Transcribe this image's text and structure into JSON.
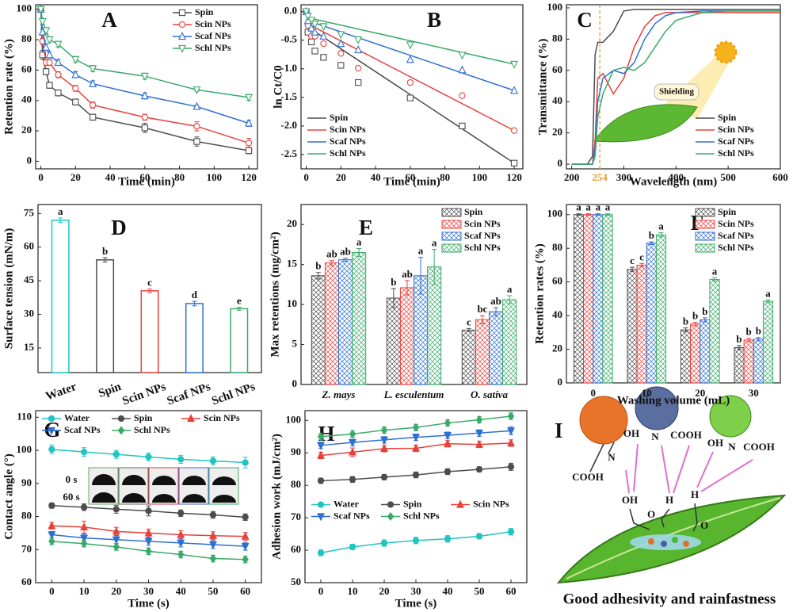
{
  "chart_data": [
    {
      "type": "line",
      "panel": "A",
      "xlabel": "Time (min)",
      "ylabel": "Retention rate (%)",
      "legend": "upper right",
      "x": [
        0,
        1,
        3,
        5,
        10,
        20,
        30,
        60,
        90,
        120
      ],
      "xlim": [
        -3,
        125
      ],
      "xticks": [
        0,
        20,
        40,
        60,
        80,
        100,
        120
      ],
      "ylim": [
        -5,
        103
      ],
      "yticks": [
        0,
        20,
        40,
        60,
        80,
        100
      ],
      "series": [
        {
          "name": "Spin",
          "color": "#4d4d4d",
          "marker": "square",
          "values": [
            100,
            70,
            59,
            50,
            45,
            39,
            29,
            22,
            13,
            7
          ],
          "errors": [
            1,
            3,
            2,
            2,
            2,
            2,
            2,
            3,
            3,
            2
          ]
        },
        {
          "name": "Scin NPs",
          "color": "#e8413c",
          "marker": "circle",
          "values": [
            100,
            79,
            65,
            65,
            57,
            48,
            37,
            29,
            23,
            12
          ],
          "errors": [
            1,
            2,
            2,
            2,
            2,
            2,
            2,
            2,
            3,
            3
          ]
        },
        {
          "name": "Scaf NPs",
          "color": "#2f6fd0",
          "marker": "triangle-up",
          "values": [
            100,
            85,
            75,
            70,
            65,
            57,
            51,
            43,
            36,
            25
          ],
          "errors": [
            1,
            2,
            2,
            2,
            2,
            2,
            2,
            2,
            1,
            2
          ]
        },
        {
          "name": "Schl NPs",
          "color": "#3aaa6a",
          "marker": "triangle-down",
          "values": [
            100,
            92,
            86,
            80,
            77,
            67,
            61,
            56,
            47,
            42
          ],
          "errors": [
            1,
            2,
            2,
            2,
            2,
            2,
            2,
            2,
            1,
            2
          ]
        }
      ]
    },
    {
      "type": "scatter",
      "panel": "B",
      "xlabel": "Time (min)",
      "ylabel": "ln Ct/C0",
      "legend": "lower left",
      "x": [
        0,
        1,
        3,
        5,
        10,
        20,
        30,
        60,
        90,
        120
      ],
      "xlim": [
        -3,
        125
      ],
      "xticks": [
        0,
        20,
        40,
        60,
        80,
        100,
        120
      ],
      "ylim": [
        -2.75,
        0.12
      ],
      "yticks": [
        {
          "value": 0,
          "label": "0.0"
        },
        -0.5,
        {
          "value": -1,
          "label": "-1.0"
        },
        -1.5,
        {
          "value": -2,
          "label": "-2.0"
        },
        -2.5
      ],
      "fit_x": [
        0,
        120
      ],
      "series": [
        {
          "name": "Spin",
          "color": "#4d4d4d",
          "marker": "square",
          "values": [
            0,
            -0.36,
            -0.53,
            -0.69,
            -0.8,
            -0.94,
            -1.24,
            -1.51,
            -2.0,
            -2.65
          ],
          "fit": [
            -0.25,
            -2.65
          ]
        },
        {
          "name": "Scin NPs",
          "color": "#e8413c",
          "marker": "circle",
          "values": [
            0,
            -0.24,
            -0.43,
            -0.43,
            -0.56,
            -0.73,
            -0.99,
            -1.24,
            -1.47,
            -2.08
          ],
          "fit": [
            -0.2,
            -2.08
          ]
        },
        {
          "name": "Scaf NPs",
          "color": "#2f6fd0",
          "marker": "triangle-up",
          "values": [
            0,
            -0.16,
            -0.29,
            -0.36,
            -0.43,
            -0.56,
            -0.67,
            -0.84,
            -1.02,
            -1.38
          ],
          "fit": [
            -0.15,
            -1.38
          ]
        },
        {
          "name": "Schl NPs",
          "color": "#3aaa6a",
          "marker": "triangle-down",
          "values": [
            0,
            -0.08,
            -0.15,
            -0.22,
            -0.26,
            -0.4,
            -0.49,
            -0.58,
            -0.76,
            -0.92
          ],
          "fit": [
            -0.1,
            -0.92
          ]
        }
      ]
    },
    {
      "type": "line",
      "panel": "C",
      "xlabel": "Wavelength (nm)",
      "ylabel": "Transmittance (%)",
      "legend": "lower right",
      "annotation": "Shielding",
      "vline": {
        "value": 254,
        "label": "254",
        "color": "#e0a030"
      },
      "x": [
        200,
        230,
        240,
        245,
        250,
        260,
        280,
        300,
        320,
        340,
        360,
        380,
        400,
        450,
        500,
        600
      ],
      "xlim": [
        190,
        600
      ],
      "xticks": [
        200,
        300,
        400,
        500,
        600
      ],
      "ylim": [
        -3,
        102
      ],
      "yticks": [
        0,
        20,
        40,
        60,
        80,
        100
      ],
      "series": [
        {
          "name": "Spin",
          "color": "#4d4d4d",
          "values": [
            0,
            0,
            5,
            70,
            78,
            78,
            85,
            98,
            99,
            99,
            99,
            99,
            99,
            99,
            99,
            99
          ]
        },
        {
          "name": "Scin NPs",
          "color": "#e8413c",
          "values": [
            0,
            0,
            0,
            15,
            55,
            58,
            45,
            55,
            75,
            88,
            95,
            97,
            97,
            97,
            97,
            97
          ]
        },
        {
          "name": "Scaf NPs",
          "color": "#2f6fd0",
          "values": [
            0,
            0,
            0,
            10,
            40,
            55,
            60,
            58,
            65,
            80,
            90,
            95,
            97,
            98,
            98,
            98
          ]
        },
        {
          "name": "Schl NPs",
          "color": "#3aaa6a",
          "values": [
            0,
            0,
            0,
            5,
            30,
            45,
            60,
            62,
            60,
            65,
            75,
            85,
            92,
            97,
            98,
            98
          ]
        }
      ]
    },
    {
      "type": "bar",
      "panel": "D",
      "ylabel": "Surface tension (mN/m)",
      "categories": [
        "Water",
        "Spin",
        "Scin NPs",
        "Scaf NPs",
        "Schl NPs"
      ],
      "values": [
        72,
        54.3,
        40.5,
        34.8,
        32.5
      ],
      "errors": [
        1,
        1,
        0.8,
        1,
        0.7
      ],
      "letters": [
        "a",
        "b",
        "c",
        "d",
        "e"
      ],
      "colors": [
        "#22c3c3",
        "#4d4d4d",
        "#e8413c",
        "#2f6fd0",
        "#3aaa6a"
      ],
      "ylim": [
        4,
        79
      ],
      "yticks": [
        15,
        30,
        45,
        60,
        75
      ]
    },
    {
      "type": "grouped_bar",
      "panel": "E",
      "ylabel": "Max retentions (mg/cm²)",
      "legend": "upper right",
      "categories": [
        "Z. mays",
        "L. esculentum",
        "O. sativa"
      ],
      "ylim": [
        0,
        22.5
      ],
      "yticks": [
        0,
        5,
        10,
        15,
        20
      ],
      "series": [
        {
          "name": "Spin",
          "color": "#4d4d4d",
          "values": [
            13.6,
            10.8,
            6.8
          ],
          "errors": [
            0.4,
            1.2,
            0.2
          ],
          "letters": [
            "b",
            "b",
            "c"
          ]
        },
        {
          "name": "Scin NPs",
          "color": "#e8413c",
          "values": [
            15.2,
            12.1,
            8.1
          ],
          "errors": [
            0.3,
            0.9,
            0.5
          ],
          "letters": [
            "ab",
            "ab",
            "bc"
          ]
        },
        {
          "name": "Scaf NPs",
          "color": "#2f6fd0",
          "values": [
            15.6,
            13.6,
            9.1
          ],
          "errors": [
            0.2,
            2.3,
            0.5
          ],
          "letters": [
            "ab",
            "a",
            "ab"
          ]
        },
        {
          "name": "Schl NPs",
          "color": "#3aaa6a",
          "values": [
            16.5,
            14.7,
            10.6
          ],
          "errors": [
            0.5,
            2.2,
            0.5
          ],
          "letters": [
            "a",
            "a",
            "a"
          ]
        }
      ]
    },
    {
      "type": "grouped_bar",
      "panel": "F",
      "xlabel": "Washing volume (mL)",
      "ylabel": "Retention rates (%)",
      "legend": "upper right",
      "categories": [
        "0",
        "10",
        "20",
        "30"
      ],
      "ylim": [
        0,
        106
      ],
      "yticks": [
        0,
        20,
        40,
        60,
        80,
        100
      ],
      "series": [
        {
          "name": "Spin",
          "color": "#4d4d4d",
          "values": [
            100,
            67.5,
            31.5,
            21
          ],
          "errors": [
            0.5,
            1.2,
            1.2,
            1.2
          ],
          "letters": [
            "a",
            "c",
            "b",
            "b"
          ]
        },
        {
          "name": "Scin NPs",
          "color": "#e8413c",
          "values": [
            100,
            70,
            35,
            25.5
          ],
          "errors": [
            0.5,
            1,
            1,
            1
          ],
          "letters": [
            "a",
            "c",
            "b",
            "b"
          ]
        },
        {
          "name": "Scaf NPs",
          "color": "#2f6fd0",
          "values": [
            100,
            83,
            37.5,
            26
          ],
          "errors": [
            0.5,
            0.8,
            1.2,
            1
          ],
          "letters": [
            "a",
            "b",
            "b",
            "b"
          ]
        },
        {
          "name": "Schl NPs",
          "color": "#3aaa6a",
          "values": [
            100,
            88,
            61.5,
            48.5
          ],
          "errors": [
            0.5,
            1.2,
            1,
            0.8
          ],
          "letters": [
            "a",
            "a",
            "a",
            "a"
          ]
        }
      ]
    },
    {
      "type": "line",
      "panel": "G",
      "xlabel": "Time (s)",
      "ylabel": "Contact angle (°)",
      "legend": "upper left",
      "legend_columns": 3,
      "inset_labels": [
        "0 s",
        "60 s"
      ],
      "x": [
        0,
        10,
        20,
        30,
        40,
        50,
        60
      ],
      "xlim": [
        -5,
        65
      ],
      "xticks": [
        0,
        10,
        20,
        30,
        40,
        50,
        60
      ],
      "ylim": [
        60,
        112
      ],
      "yticks": [
        60,
        70,
        80,
        90,
        100,
        110
      ],
      "series": [
        {
          "name": "Water",
          "color": "#22c3c3",
          "marker": "circle-filled",
          "values": [
            100.3,
            99.5,
            98.8,
            98,
            97.3,
            96.8,
            96.3
          ],
          "errors": [
            1.3,
            1.3,
            1.2,
            1.2,
            1.2,
            1.2,
            1.6
          ]
        },
        {
          "name": "Spin",
          "color": "#4d4d4d",
          "marker": "circle-filled",
          "values": [
            83.3,
            82.8,
            82.2,
            81.7,
            81,
            80.5,
            79.8
          ],
          "errors": [
            0.8,
            1,
            1.2,
            1.5,
            1,
            1,
            1
          ]
        },
        {
          "name": "Scin NPs",
          "color": "#e8413c",
          "marker": "triangle-up-filled",
          "values": [
            77.2,
            76.8,
            75.5,
            75,
            74.5,
            74.2,
            74
          ],
          "errors": [
            1,
            1.8,
            1.2,
            1.2,
            1.2,
            1.2,
            1.2
          ]
        },
        {
          "name": "Scaf NPs",
          "color": "#2f6fd0",
          "marker": "triangle-down-filled",
          "values": [
            74.5,
            73.5,
            73,
            72.5,
            72,
            71.5,
            71
          ],
          "errors": [
            1,
            1.2,
            1.2,
            1.2,
            1.2,
            1.2,
            1.2
          ]
        },
        {
          "name": "Schl NPs",
          "color": "#3aaa6a",
          "marker": "diamond-filled",
          "values": [
            72.5,
            71.8,
            70.8,
            69.5,
            68.5,
            67.3,
            67
          ],
          "errors": [
            1,
            1,
            1,
            1,
            1,
            1,
            1
          ]
        }
      ]
    },
    {
      "type": "line",
      "panel": "H",
      "xlabel": "Time (s)",
      "ylabel": "Adhesion work (mJ/cm²)",
      "legend": "center left",
      "legend_columns": 3,
      "x": [
        0,
        10,
        20,
        30,
        40,
        50,
        60
      ],
      "xlim": [
        -5,
        65
      ],
      "xticks": [
        0,
        10,
        20,
        30,
        40,
        50,
        60
      ],
      "ylim": [
        50,
        103
      ],
      "yticks": [
        50,
        60,
        70,
        80,
        90,
        100
      ],
      "series": [
        {
          "name": "Water",
          "color": "#22c3c3",
          "marker": "circle-filled",
          "values": [
            59.2,
            61,
            62.2,
            63,
            63.5,
            64.3,
            65.7
          ],
          "errors": [
            0.9,
            0.8,
            1,
            1,
            1,
            0.8,
            1
          ]
        },
        {
          "name": "Spin",
          "color": "#4d4d4d",
          "marker": "circle-filled",
          "values": [
            81.4,
            81.8,
            82.5,
            83.2,
            84.2,
            84.9,
            85.7
          ],
          "errors": [
            0.8,
            0.9,
            0.8,
            0.9,
            0.9,
            0.8,
            1.1
          ]
        },
        {
          "name": "Scin NPs",
          "color": "#e8413c",
          "marker": "triangle-up-filled",
          "values": [
            89.2,
            90.2,
            91.3,
            91.4,
            92.8,
            92.6,
            93
          ],
          "errors": [
            1,
            1.3,
            1,
            1,
            1,
            1,
            1
          ]
        },
        {
          "name": "Scaf NPs",
          "color": "#2f6fd0",
          "marker": "triangle-down-filled",
          "values": [
            92.3,
            93.2,
            94,
            94.8,
            95.4,
            96.1,
            96.8
          ],
          "errors": [
            1,
            1,
            1,
            1,
            1,
            1,
            1.2
          ]
        },
        {
          "name": "Schl NPs",
          "color": "#3aaa6a",
          "marker": "diamond-filled",
          "values": [
            95,
            95.8,
            97,
            97.8,
            99.2,
            100.2,
            101.3
          ],
          "errors": [
            1,
            1,
            1,
            1,
            1,
            1,
            1
          ]
        }
      ]
    }
  ],
  "diagram": {
    "panel": "I",
    "caption": "Good adhesivity and rainfastness",
    "labels": [
      "COOH",
      "N",
      "OH",
      "N",
      "COOH",
      "OH",
      "N",
      "COOH",
      "OH",
      "H",
      "H",
      "O",
      "O"
    ]
  }
}
